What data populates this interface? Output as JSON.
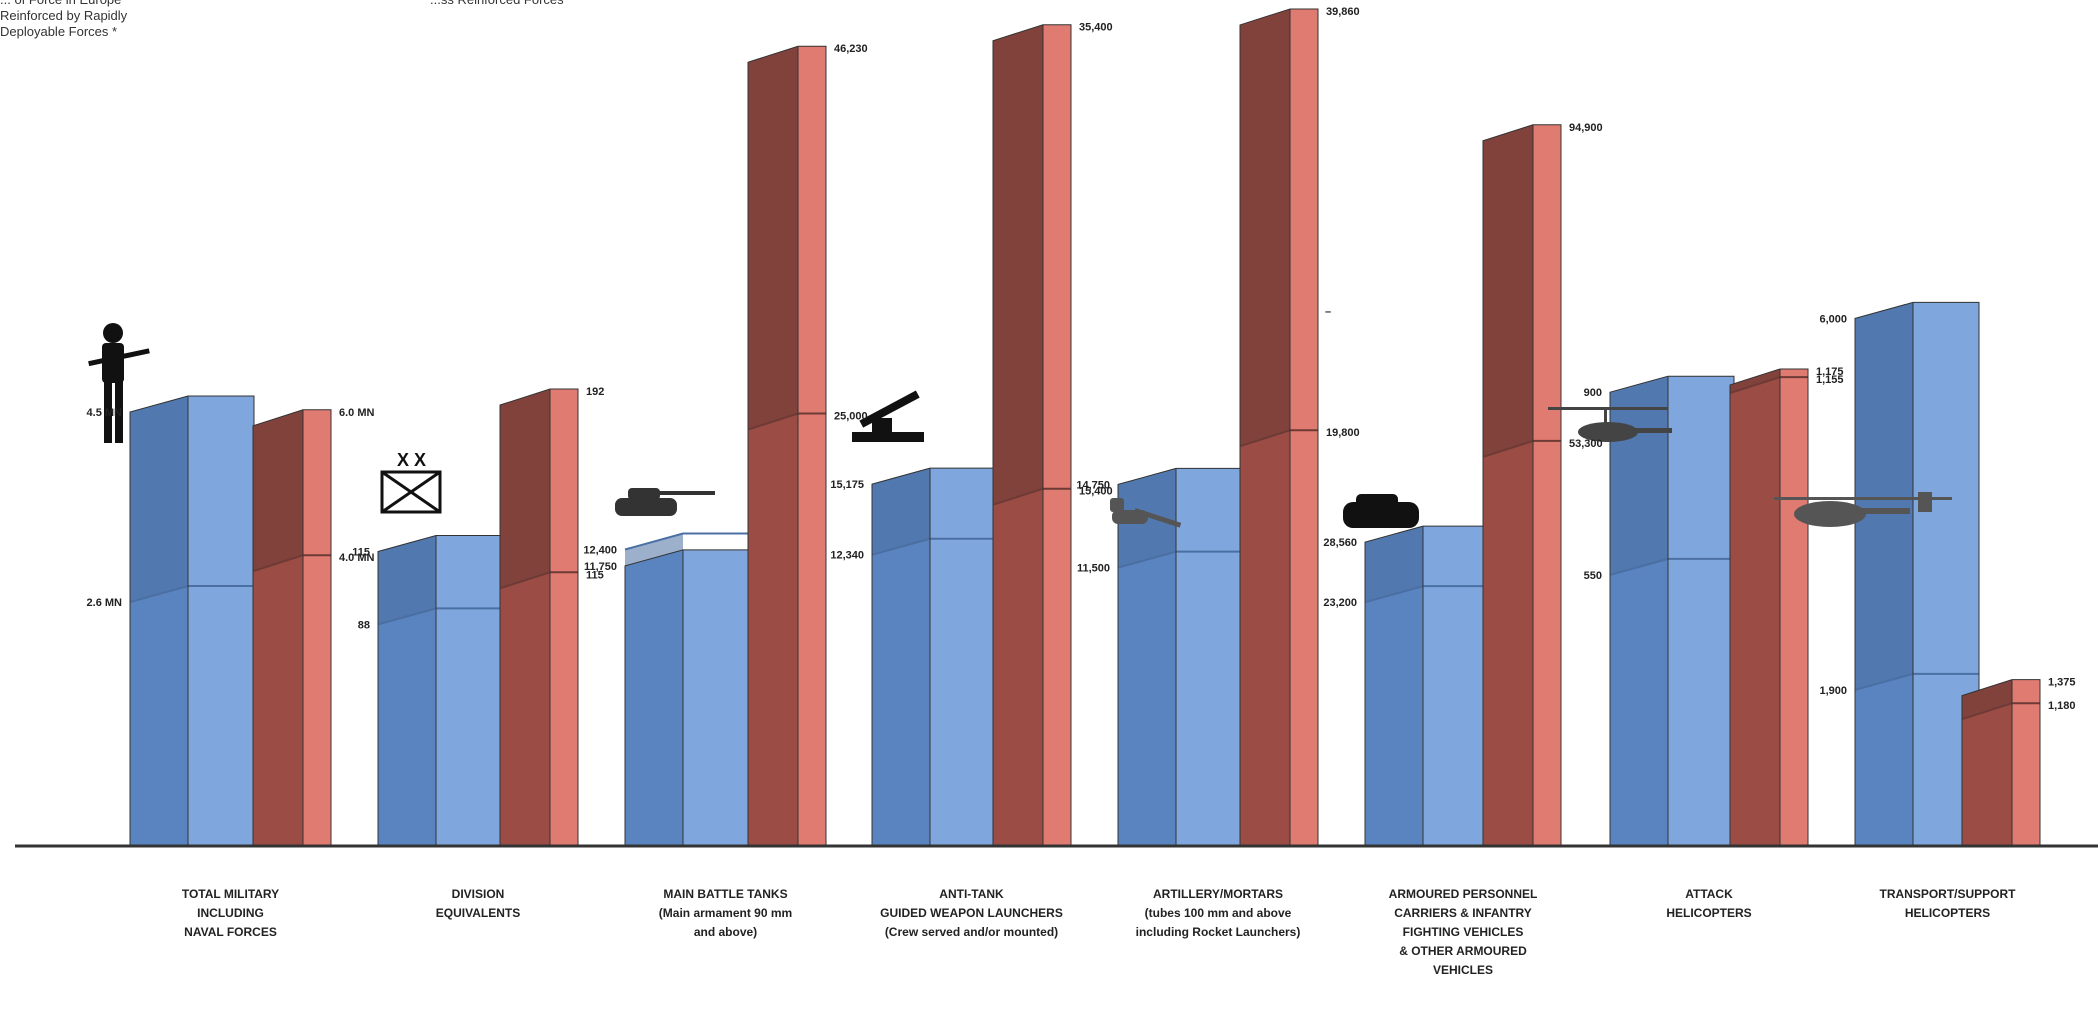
{
  "notes": {
    "top_left": "... of Force in Europe\nReinforced by Rapidly\nDeployable Forces *",
    "top_middle": "...ss Reinforced Forces"
  },
  "colors": {
    "blue": "#7fa7dd",
    "blue_side": "#5a84bf",
    "blue_top": "#4b6fa3",
    "red": "#e07b72",
    "red_side": "#9a4c45",
    "red_top": "#6e3a35"
  },
  "chart_data": {
    "type": "bar",
    "categories": [
      [
        "TOTAL MILITARY",
        "INCLUDING",
        "NAVAL FORCES"
      ],
      [
        "DIVISION",
        "EQUIVALENTS"
      ],
      [
        "MAIN BATTLE TANKS",
        "(Main armament 90 mm",
        "and above)"
      ],
      [
        "ANTI-TANK",
        "GUIDED WEAPON LAUNCHERS",
        "(Crew served and/or mounted)"
      ],
      [
        "ARTILLERY/MORTARS",
        "(tubes 100 mm and above",
        "including Rocket Launchers)"
      ],
      [
        "ARMOURED PERSONNEL",
        "CARRIERS & INFANTRY",
        "FIGHTING VEHICLES",
        "& OTHER ARMOURED",
        "VEHICLES"
      ],
      [
        "ATTACK",
        "HELICOPTERS"
      ],
      [
        "TRANSPORT/SUPPORT",
        "HELICOPTERS"
      ]
    ],
    "series": [
      {
        "values_upper": [
          4.5,
          115,
          11750,
          15175,
          14750,
          28560,
          900,
          6000
        ],
        "labels_upper": [
          "4.5 MN",
          "115",
          "11,750",
          "15,175",
          "14,750",
          "28,560",
          "900",
          "6,000"
        ],
        "values_lower": [
          2.6,
          88,
          12400,
          12340,
          11500,
          23200,
          550,
          1900
        ],
        "labels_lower": [
          "2.6 MN",
          "88",
          "12,400",
          "12,340",
          "11,500",
          "23,200",
          "550",
          "1,900"
        ]
      },
      {
        "values_upper": [
          6.0,
          192,
          46230,
          35400,
          39860,
          94900,
          1175,
          1375
        ],
        "labels_upper": [
          "6.0 MN",
          "192",
          "46,230",
          "35,400",
          "39,860",
          "94,900",
          "1,175",
          "1,375"
        ],
        "values_lower": [
          4.0,
          115,
          25000,
          15400,
          19800,
          53300,
          1155,
          1180
        ],
        "labels_lower": [
          "4.0 MN",
          "115",
          "25,000",
          "15,400",
          "19,800",
          "53,300",
          "1,155",
          "1,180"
        ]
      }
    ],
    "extra_marks": [
      "–"
    ]
  }
}
